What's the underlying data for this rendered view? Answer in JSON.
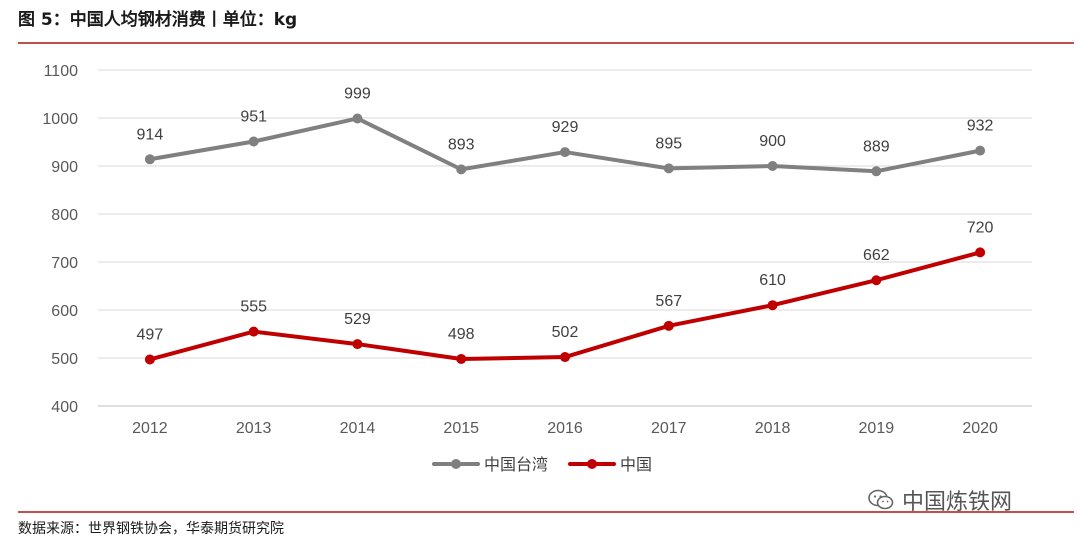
{
  "header": {
    "title": "图 5：中国人均钢材消费丨单位：kg"
  },
  "footer": {
    "source": "数据来源：世界钢铁协会，华泰期货研究院"
  },
  "watermark": {
    "text": "中国炼铁网",
    "icon": "wechat-icon"
  },
  "colors": {
    "accent_rule": "#c0504d"
  },
  "chart_data": {
    "type": "line",
    "title": "",
    "xlabel": "",
    "ylabel": "",
    "categories": [
      "2012",
      "2013",
      "2014",
      "2015",
      "2016",
      "2017",
      "2018",
      "2019",
      "2020"
    ],
    "ylim": [
      400,
      1100
    ],
    "yticks": [
      400,
      500,
      600,
      700,
      800,
      900,
      1000,
      1100
    ],
    "grid": true,
    "legend_position": "bottom",
    "series": [
      {
        "name": "中国台湾",
        "color": "#808080",
        "values": [
          914,
          951,
          999,
          893,
          929,
          895,
          900,
          889,
          932
        ]
      },
      {
        "name": "中国",
        "color": "#c00000",
        "values": [
          497,
          555,
          529,
          498,
          502,
          567,
          610,
          662,
          720
        ]
      }
    ]
  }
}
